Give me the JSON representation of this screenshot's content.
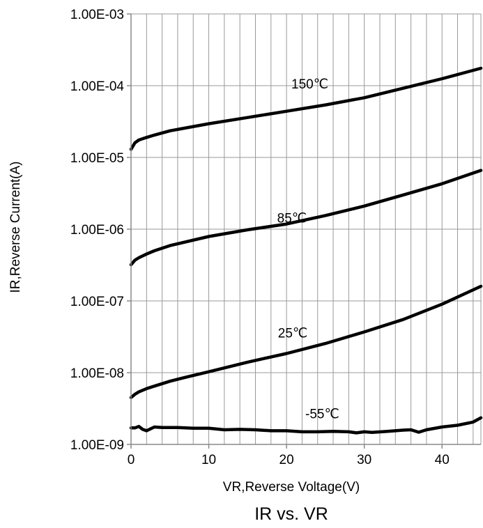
{
  "chart_data": {
    "type": "line",
    "title": "IR vs. VR",
    "xlabel": "VR,Reverse Voltage(V)",
    "ylabel": "IR,Reverse Current(A)",
    "xlim": [
      0,
      45
    ],
    "ylim": [
      1e-09,
      0.001
    ],
    "y_scale": "log",
    "grid": true,
    "x_ticks": [
      {
        "value": 0,
        "label": "0"
      },
      {
        "value": 10,
        "label": "10"
      },
      {
        "value": 20,
        "label": "20"
      },
      {
        "value": 30,
        "label": "30"
      },
      {
        "value": 40,
        "label": "40"
      }
    ],
    "y_ticks": [
      {
        "value": 1e-09,
        "label": "1.00E-09"
      },
      {
        "value": 1e-08,
        "label": "1.00E-08"
      },
      {
        "value": 1e-07,
        "label": "1.00E-07"
      },
      {
        "value": 1e-06,
        "label": "1.00E-06"
      },
      {
        "value": 1e-05,
        "label": "1.00E-05"
      },
      {
        "value": 0.0001,
        "label": "1.00E-04"
      },
      {
        "value": 0.001,
        "label": "1.00E-03"
      }
    ],
    "colors": {
      "line": "#000000",
      "grid": "#999999",
      "axis": "#888888"
    },
    "series": [
      {
        "name": "150℃",
        "label_at": {
          "x": 23,
          "y": 0.000107
        },
        "points": [
          [
            0,
            1.3e-05
          ],
          [
            0.5,
            1.6e-05
          ],
          [
            1,
            1.75e-05
          ],
          [
            2,
            1.9e-05
          ],
          [
            3,
            2.05e-05
          ],
          [
            5,
            2.35e-05
          ],
          [
            10,
            2.95e-05
          ],
          [
            15,
            3.6e-05
          ],
          [
            20,
            4.4e-05
          ],
          [
            25,
            5.4e-05
          ],
          [
            30,
            6.8e-05
          ],
          [
            35,
            9.2e-05
          ],
          [
            40,
            0.000125
          ],
          [
            45,
            0.000175
          ]
        ]
      },
      {
        "name": "85℃",
        "label_at": {
          "x": 20.7,
          "y": 1.45e-06
        },
        "points": [
          [
            0,
            3.2e-07
          ],
          [
            0.5,
            3.7e-07
          ],
          [
            1,
            4e-07
          ],
          [
            2,
            4.5e-07
          ],
          [
            3,
            5e-07
          ],
          [
            5,
            5.9e-07
          ],
          [
            10,
            7.9e-07
          ],
          [
            15,
            9.8e-07
          ],
          [
            20,
            1.18e-06
          ],
          [
            25,
            1.55e-06
          ],
          [
            30,
            2.1e-06
          ],
          [
            35,
            3e-06
          ],
          [
            40,
            4.3e-06
          ],
          [
            45,
            6.6e-06
          ]
        ]
      },
      {
        "name": "25℃",
        "label_at": {
          "x": 20.8,
          "y": 3.6e-08
        },
        "points": [
          [
            0,
            4.5e-09
          ],
          [
            0.5,
            5e-09
          ],
          [
            1,
            5.4e-09
          ],
          [
            2,
            6e-09
          ],
          [
            3,
            6.5e-09
          ],
          [
            5,
            7.6e-09
          ],
          [
            7,
            8.6e-09
          ],
          [
            10,
            1.03e-08
          ],
          [
            15,
            1.4e-08
          ],
          [
            20,
            1.85e-08
          ],
          [
            25,
            2.55e-08
          ],
          [
            30,
            3.7e-08
          ],
          [
            35,
            5.5e-08
          ],
          [
            40,
            9e-08
          ],
          [
            45,
            1.6e-07
          ]
        ]
      },
      {
        "name": "-55℃",
        "label_at": {
          "x": 24.6,
          "y": 2.7e-09
        },
        "points": [
          [
            0,
            1.7e-09
          ],
          [
            0.5,
            1.7e-09
          ],
          [
            1,
            1.78e-09
          ],
          [
            1.5,
            1.62e-09
          ],
          [
            2,
            1.55e-09
          ],
          [
            3,
            1.75e-09
          ],
          [
            4,
            1.72e-09
          ],
          [
            6,
            1.72e-09
          ],
          [
            8,
            1.68e-09
          ],
          [
            10,
            1.68e-09
          ],
          [
            12,
            1.6e-09
          ],
          [
            14,
            1.62e-09
          ],
          [
            16,
            1.6e-09
          ],
          [
            18,
            1.55e-09
          ],
          [
            20,
            1.55e-09
          ],
          [
            22,
            1.5e-09
          ],
          [
            24,
            1.5e-09
          ],
          [
            26,
            1.52e-09
          ],
          [
            28,
            1.5e-09
          ],
          [
            29,
            1.45e-09
          ],
          [
            30,
            1.5e-09
          ],
          [
            31,
            1.47e-09
          ],
          [
            33,
            1.52e-09
          ],
          [
            35,
            1.58e-09
          ],
          [
            36,
            1.6e-09
          ],
          [
            37,
            1.48e-09
          ],
          [
            38,
            1.6e-09
          ],
          [
            40,
            1.75e-09
          ],
          [
            42,
            1.85e-09
          ],
          [
            44,
            2.05e-09
          ],
          [
            45,
            2.35e-09
          ]
        ]
      }
    ]
  }
}
